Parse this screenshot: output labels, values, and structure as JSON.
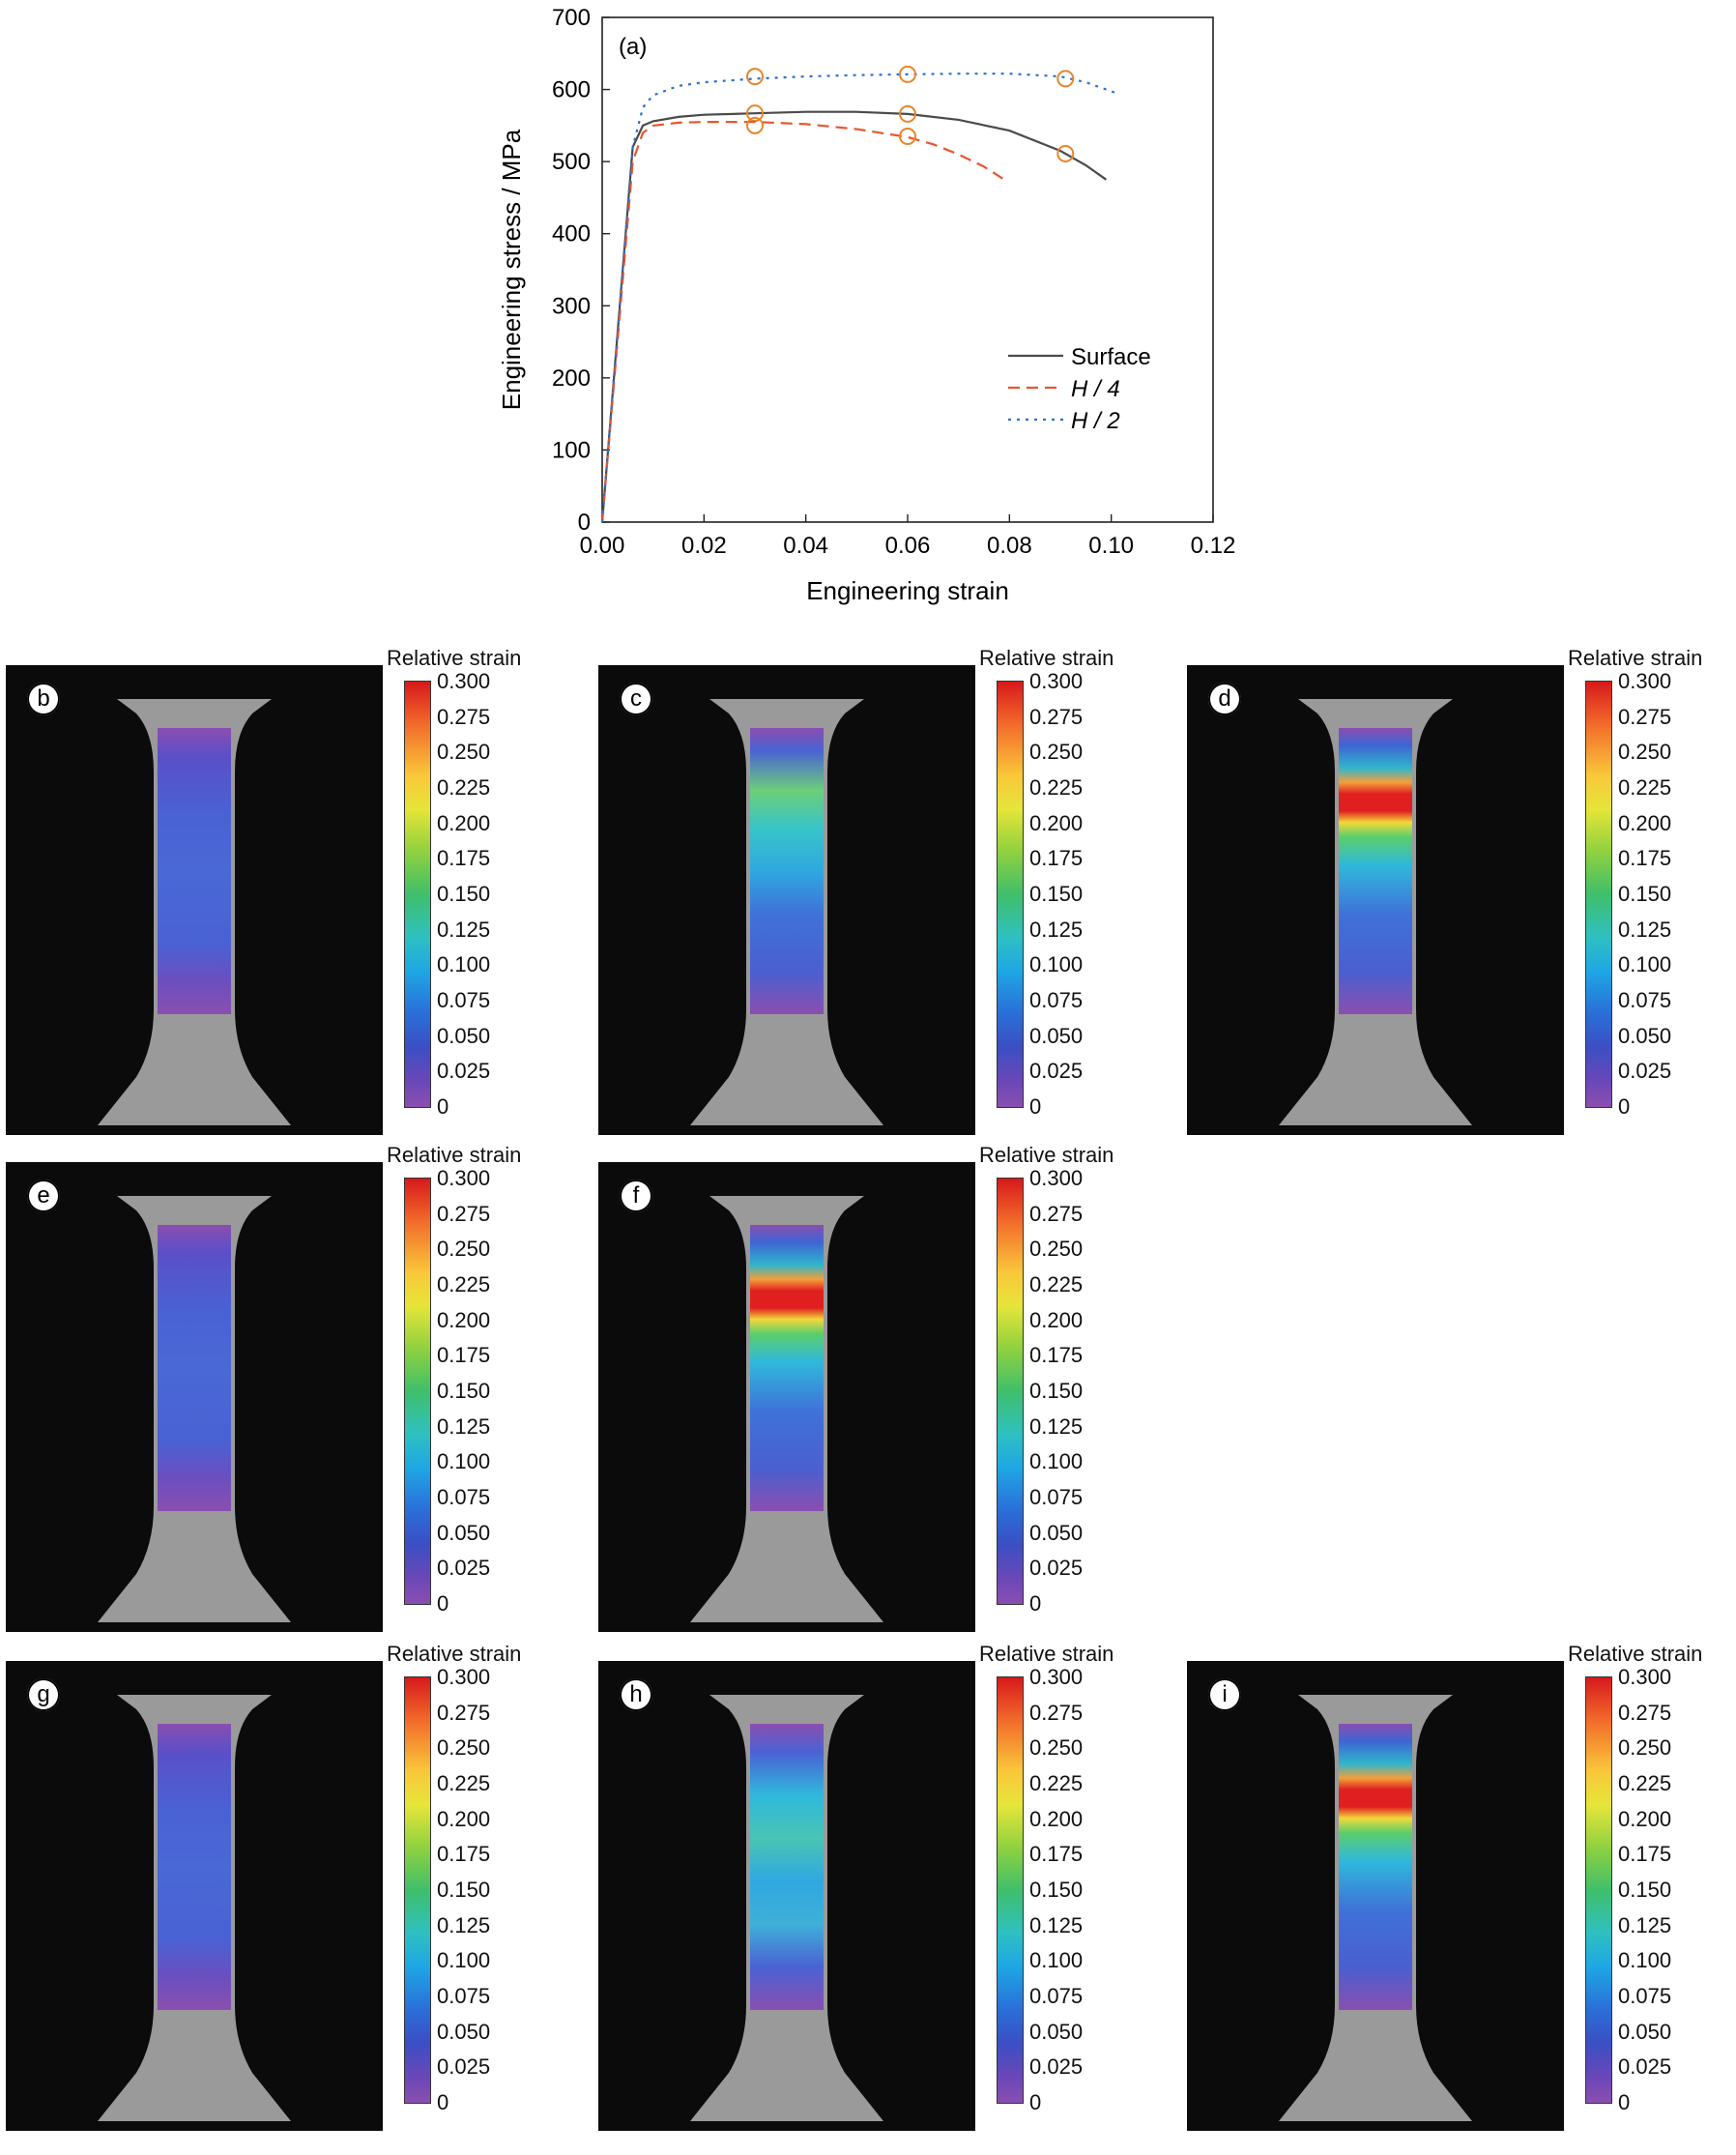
{
  "chart_data": {
    "type": "line",
    "panel_label": "(a)",
    "xlabel": "Engineering strain",
    "ylabel": "Engineering stress / MPa",
    "xlim": [
      0,
      0.12
    ],
    "ylim": [
      0,
      700
    ],
    "xticks": [
      "0.00",
      "0.02",
      "0.04",
      "0.06",
      "0.08",
      "0.10",
      "0.12"
    ],
    "yticks": [
      "0",
      "100",
      "200",
      "300",
      "400",
      "500",
      "600",
      "700"
    ],
    "legend_position": "lower-right",
    "series": [
      {
        "name": "Surface",
        "style": "solid",
        "color": "#4a4a4a",
        "x": [
          0.0,
          0.006,
          0.008,
          0.01,
          0.015,
          0.02,
          0.03,
          0.04,
          0.05,
          0.06,
          0.07,
          0.08,
          0.09,
          0.095,
          0.099
        ],
        "y": [
          0,
          520,
          550,
          556,
          562,
          565,
          567,
          569,
          569,
          566,
          558,
          543,
          515,
          495,
          475
        ],
        "markers": [
          [
            0.03,
            567
          ],
          [
            0.06,
            566
          ],
          [
            0.091,
            511
          ]
        ]
      },
      {
        "name": "H / 4",
        "style": "dashed",
        "color": "#e8552e",
        "x": [
          0.0,
          0.006,
          0.008,
          0.01,
          0.015,
          0.02,
          0.03,
          0.04,
          0.05,
          0.06,
          0.065,
          0.07,
          0.075,
          0.079
        ],
        "y": [
          0,
          500,
          540,
          550,
          554,
          555,
          555,
          552,
          545,
          534,
          524,
          510,
          493,
          475
        ],
        "markers": [
          [
            0.03,
            550
          ],
          [
            0.06,
            535
          ]
        ]
      },
      {
        "name": "H / 2",
        "style": "dotted",
        "color": "#2f6fd0",
        "x": [
          0.0,
          0.006,
          0.008,
          0.01,
          0.015,
          0.02,
          0.03,
          0.04,
          0.05,
          0.06,
          0.07,
          0.08,
          0.09,
          0.095,
          0.101
        ],
        "y": [
          0,
          520,
          575,
          592,
          605,
          610,
          615,
          618,
          620,
          621,
          622,
          622,
          618,
          610,
          595
        ],
        "markers": [
          [
            0.03,
            618
          ],
          [
            0.06,
            621
          ],
          [
            0.091,
            615
          ]
        ]
      }
    ],
    "marker_color": "#e8852e"
  },
  "maps": {
    "colorbar_title": "Relative strain",
    "colorbar_ticks": [
      "0.300",
      "0.275",
      "0.250",
      "0.225",
      "0.200",
      "0.175",
      "0.150",
      "0.125",
      "0.100",
      "0.075",
      "0.050",
      "0.025",
      "0"
    ],
    "panels": [
      {
        "label": "(b)",
        "pattern": "uniform-low"
      },
      {
        "label": "(c)",
        "pattern": "mid-upper"
      },
      {
        "label": "(d)",
        "pattern": "localized-upper"
      },
      {
        "label": "(e)",
        "pattern": "uniform-low"
      },
      {
        "label": "(f)",
        "pattern": "localized-upper"
      },
      {
        "label": "(g)",
        "pattern": "uniform-low"
      },
      {
        "label": "(h)",
        "pattern": "mottled-mid"
      },
      {
        "label": "(i)",
        "pattern": "localized-upper"
      }
    ]
  }
}
